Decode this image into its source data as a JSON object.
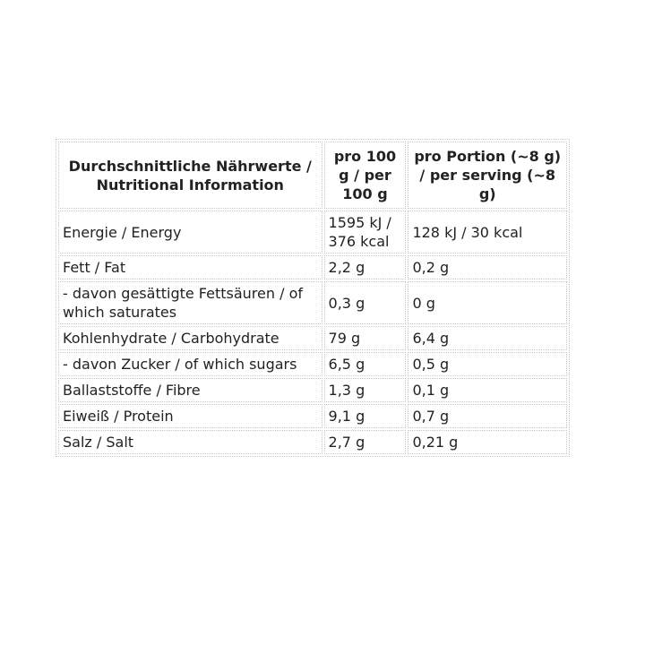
{
  "table": {
    "headers": [
      "Durchschnittliche Nährwerte / Nutritional Information",
      "pro 100 g / per 100 g",
      "pro Portion (~8 g) / per serving (~8 g)"
    ],
    "rows": [
      [
        "Energie / Energy",
        "1595 kJ / 376 kcal",
        "128 kJ / 30 kcal"
      ],
      [
        "Fett / Fat",
        "2,2 g",
        "0,2 g"
      ],
      [
        "- davon gesättigte Fettsäuren / of which saturates",
        "0,3 g",
        "0 g"
      ],
      [
        "Kohlenhydrate / Carbohydrate",
        "79 g",
        "6,4 g"
      ],
      [
        "- davon Zucker / of which sugars",
        "6,5 g",
        "0,5 g"
      ],
      [
        "Ballaststoffe / Fibre",
        "1,3 g",
        "0,1 g"
      ],
      [
        "Eiweiß / Protein",
        "9,1 g",
        "0,7 g"
      ],
      [
        "Salz / Salt",
        "2,7 g",
        "0,21 g"
      ]
    ]
  }
}
